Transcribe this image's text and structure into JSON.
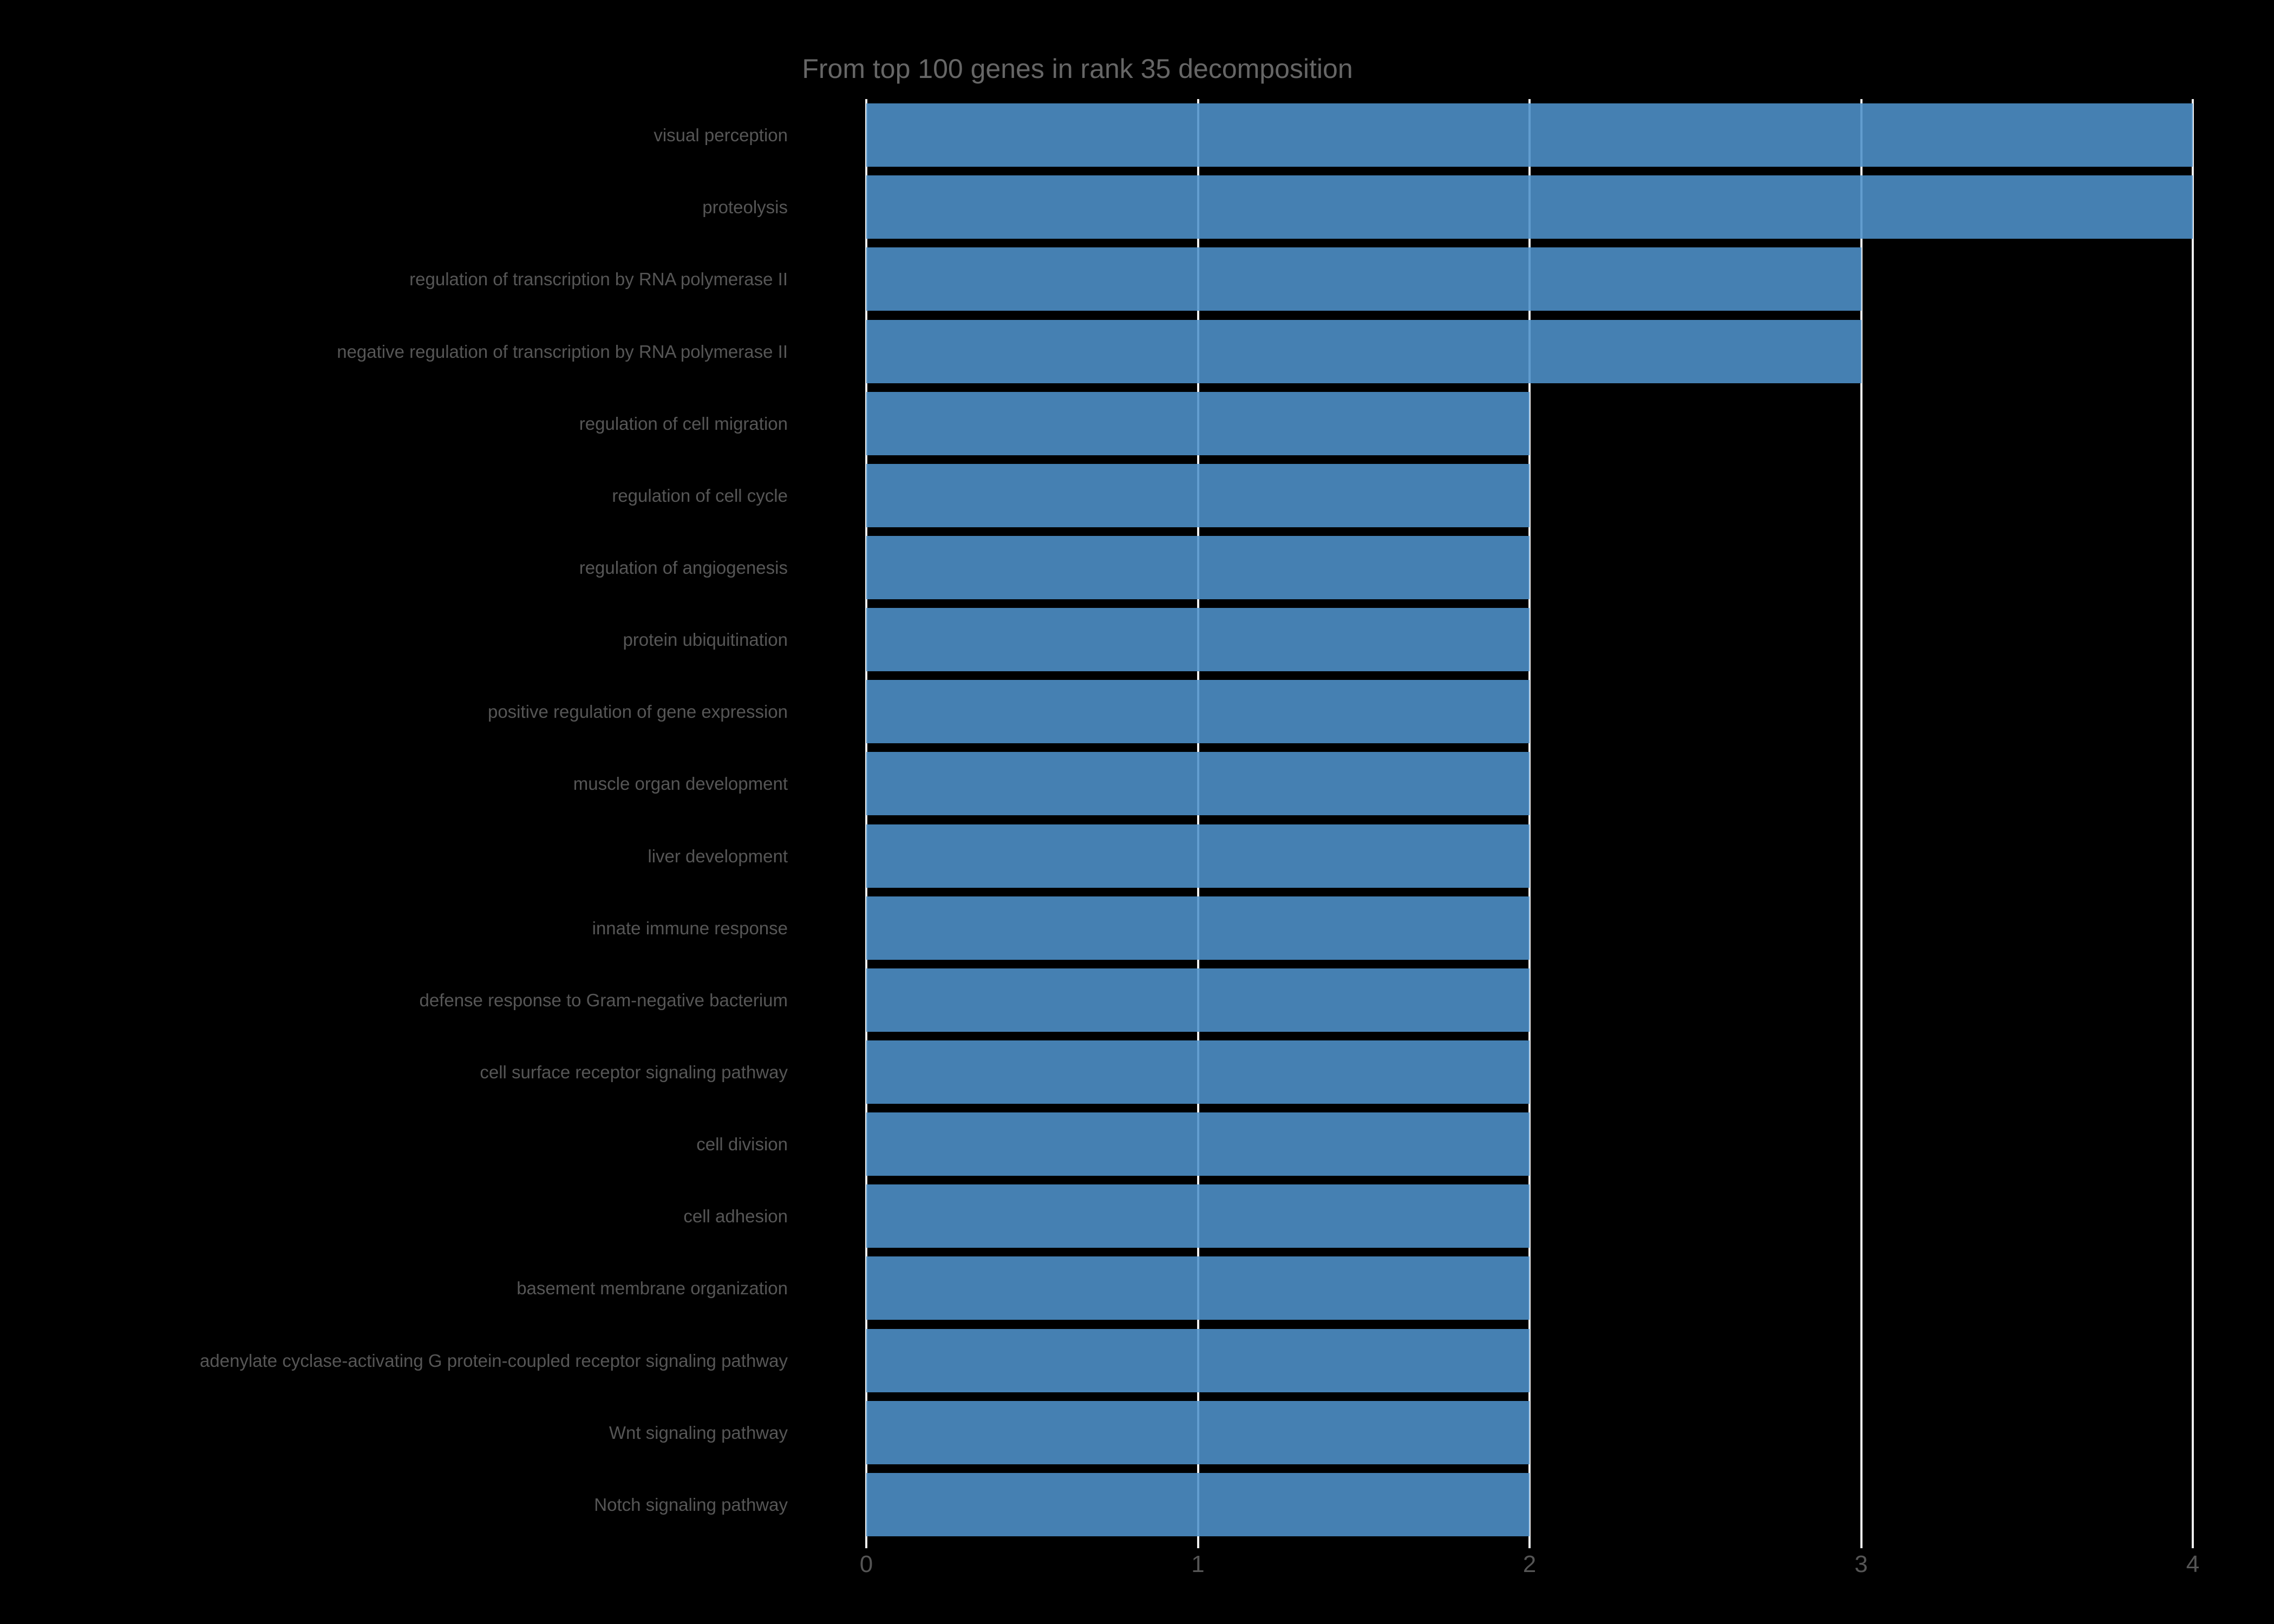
{
  "title": "From top 100 genes in rank 35 decomposition",
  "chart_data": {
    "type": "bar",
    "orientation": "horizontal",
    "title": "From top 100 genes in rank 35 decomposition",
    "categories": [
      "visual perception",
      "proteolysis",
      "regulation of transcription by RNA polymerase II",
      "negative regulation of transcription by RNA polymerase II",
      "regulation of cell migration",
      "regulation of cell cycle",
      "regulation of angiogenesis",
      "protein ubiquitination",
      "positive regulation of gene expression",
      "muscle organ development",
      "liver development",
      "innate immune response",
      "defense response to Gram-negative bacterium",
      "cell surface receptor signaling pathway",
      "cell division",
      "cell adhesion",
      "basement membrane organization",
      "adenylate cyclase-activating G protein-coupled receptor signaling pathway",
      "Wnt signaling pathway",
      "Notch signaling pathway"
    ],
    "values": [
      4,
      4,
      3,
      3,
      2,
      2,
      2,
      2,
      2,
      2,
      2,
      2,
      2,
      2,
      2,
      2,
      2,
      2,
      2,
      2
    ],
    "xlabel": "",
    "ylabel": "",
    "x_ticks": [
      0,
      1,
      2,
      3,
      4
    ],
    "xlim": [
      0,
      4
    ],
    "grid": true,
    "legend": false,
    "colors": {
      "background": "#000000",
      "bar": "#4F92CB",
      "gridline": "#EDEDED",
      "title_text": "#666666",
      "category_text": "#565656",
      "tick_text": "#555555"
    }
  }
}
